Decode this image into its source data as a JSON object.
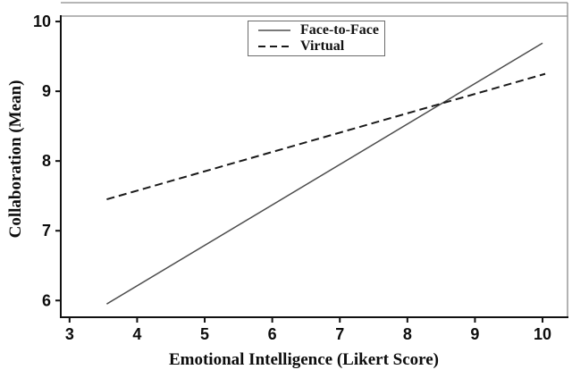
{
  "chart_data": {
    "type": "line",
    "title": "",
    "xlabel": "Emotional Intelligence (Likert Score)",
    "ylabel": "Collaboration (Mean)",
    "xlim": [
      2.87,
      10.37
    ],
    "ylim": [
      5.76,
      10.27
    ],
    "xticks": [
      3,
      4,
      5,
      6,
      7,
      8,
      9,
      10
    ],
    "yticks": [
      6,
      7,
      8,
      9,
      10
    ],
    "grid": false,
    "legend_position": "top-center-inside",
    "frame_color": "#8a8a8a",
    "axis_color": "#111111",
    "series": [
      {
        "name": "Face-to-Face",
        "style": "solid",
        "color": "#4d4d4d",
        "width": 1.5,
        "x": [
          3.55,
          10.0
        ],
        "y": [
          5.95,
          9.69
        ]
      },
      {
        "name": "Virtual",
        "style": "dashed",
        "color": "#1a1a1a",
        "width": 2,
        "x": [
          3.55,
          10.04
        ],
        "y": [
          7.45,
          9.25
        ]
      }
    ]
  }
}
